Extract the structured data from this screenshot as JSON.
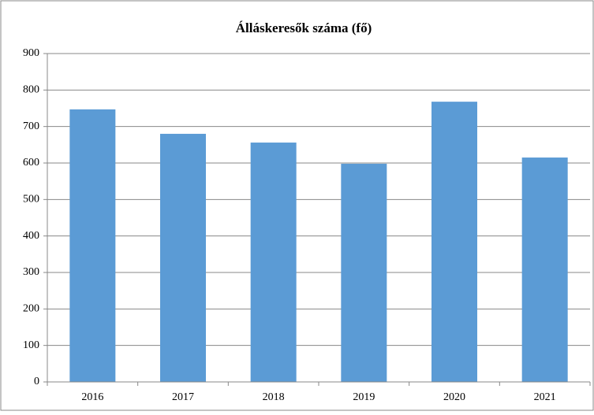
{
  "chart_data": {
    "type": "bar",
    "title": "Álláskeresők száma (fő)",
    "categories": [
      "2016",
      "2017",
      "2018",
      "2019",
      "2020",
      "2021"
    ],
    "values": [
      747,
      680,
      656,
      598,
      768,
      615
    ],
    "color": "#5b9bd5",
    "ylim": [
      0,
      900
    ],
    "yticks": [
      0,
      100,
      200,
      300,
      400,
      500,
      600,
      700,
      800,
      900
    ],
    "grid": true
  }
}
